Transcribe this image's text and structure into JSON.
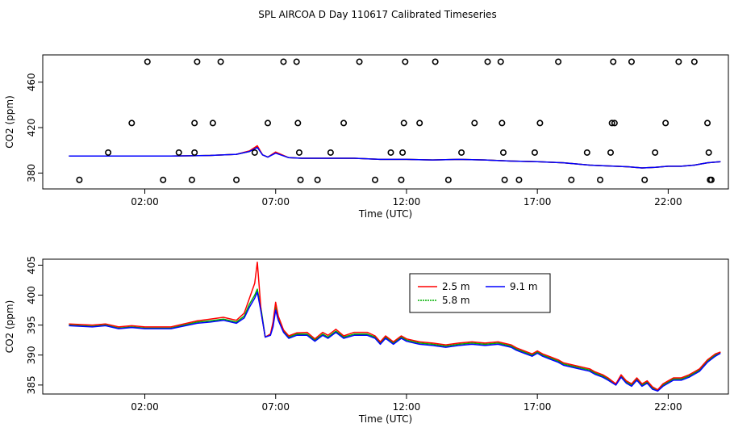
{
  "figure": {
    "title": "SPL AIRCOA D  Day 110617  Calibrated Timeseries"
  },
  "colors": {
    "red": "#ff0000",
    "green": "#00b000",
    "blue": "#0000ff",
    "black": "#000000"
  },
  "chart_data": [
    {
      "type": "line",
      "xlabel": "Time (UTC)",
      "ylabel": "CO2 (ppm)",
      "xlim": [
        -1.9,
        24.3
      ],
      "ylim": [
        366,
        484
      ],
      "x_ticks": [
        {
          "value": 2,
          "label": "02:00"
        },
        {
          "value": 7,
          "label": "07:00"
        },
        {
          "value": 12,
          "label": "12:00"
        },
        {
          "value": 17,
          "label": "17:00"
        },
        {
          "value": 22,
          "label": "22:00"
        }
      ],
      "y_ticks": [
        {
          "value": 380,
          "label": "380"
        },
        {
          "value": 420,
          "label": "420"
        },
        {
          "value": 460,
          "label": "460"
        }
      ],
      "series": [
        {
          "color_key": "green",
          "x": [
            -0.9,
            1.5,
            3.0,
            4.5,
            5.5,
            6.0,
            6.3,
            6.5,
            6.7,
            7.0,
            7.5,
            8.0,
            9.0,
            10.0,
            11.0,
            12.0,
            13.0,
            14.0,
            15.0,
            16.0,
            17.0,
            18.0,
            19.0,
            19.5,
            20.0,
            20.5,
            21.0,
            21.5,
            22.0,
            22.5,
            23.0,
            23.5,
            24.0
          ],
          "y": [
            395,
            395,
            395,
            395.5,
            396.5,
            399,
            403,
            396,
            394,
            398,
            393.5,
            393,
            393,
            393,
            392,
            392,
            391.5,
            392,
            391.5,
            390.5,
            390,
            389,
            387,
            386.5,
            386,
            385.5,
            384.5,
            385,
            386,
            386,
            387,
            389,
            390
          ]
        },
        {
          "color_key": "red",
          "x": [
            -0.9,
            1.5,
            3.0,
            4.5,
            5.5,
            6.0,
            6.3,
            6.5,
            6.7,
            7.0,
            7.5,
            8.0,
            9.0,
            10.0,
            11.0,
            12.0,
            13.0,
            14.0,
            15.0,
            16.0,
            17.0,
            18.0,
            19.0,
            19.5,
            20.0,
            20.5,
            21.0,
            21.5,
            22.0,
            22.5,
            23.0,
            23.5,
            24.0
          ],
          "y": [
            395,
            395,
            395,
            395.5,
            396.5,
            399.5,
            404,
            396,
            394,
            398.5,
            393.5,
            393,
            393,
            393,
            392,
            392,
            391.5,
            392,
            391.5,
            390.5,
            390,
            389,
            387,
            386.5,
            386,
            385.5,
            384.5,
            385,
            386,
            386,
            387,
            389,
            390
          ]
        },
        {
          "color_key": "blue",
          "x": [
            -0.9,
            1.5,
            3.0,
            4.5,
            5.5,
            6.0,
            6.3,
            6.5,
            6.7,
            7.0,
            7.5,
            8.0,
            9.0,
            10.0,
            11.0,
            12.0,
            13.0,
            14.0,
            15.0,
            16.0,
            17.0,
            18.0,
            19.0,
            19.5,
            20.0,
            20.5,
            21.0,
            21.5,
            22.0,
            22.5,
            23.0,
            23.5,
            24.0
          ],
          "y": [
            395,
            395,
            395,
            395.5,
            396.5,
            399,
            402.5,
            396,
            394,
            397.5,
            393.5,
            393,
            393,
            393,
            392,
            392,
            391.5,
            392,
            391.5,
            390.5,
            390,
            389,
            387,
            386.5,
            386,
            385.5,
            384.5,
            385,
            386,
            386,
            387,
            389,
            390
          ]
        }
      ],
      "points": {
        "type": "scatter",
        "color_key": "black",
        "x": [
          -0.5,
          0.6,
          1.5,
          2.1,
          2.7,
          3.3,
          3.8,
          3.9,
          3.9,
          4.0,
          4.6,
          4.9,
          5.5,
          6.2,
          6.7,
          7.3,
          7.8,
          7.85,
          7.9,
          7.95,
          8.6,
          9.1,
          9.6,
          10.2,
          10.8,
          11.4,
          11.8,
          11.85,
          11.9,
          11.95,
          12.5,
          13.1,
          13.6,
          14.1,
          14.6,
          15.1,
          15.6,
          15.65,
          15.7,
          15.75,
          16.3,
          16.9,
          17.1,
          17.8,
          18.3,
          18.9,
          19.4,
          19.8,
          19.85,
          19.9,
          19.95,
          20.6,
          21.1,
          21.5,
          21.9,
          22.4,
          23.0,
          23.5,
          23.55,
          23.6,
          23.65
        ],
        "y": [
          374,
          398,
          424,
          478,
          374,
          398,
          374,
          398,
          424,
          478,
          424,
          478,
          374,
          398,
          424,
          478,
          478,
          424,
          398,
          374,
          374,
          398,
          424,
          478,
          374,
          398,
          374,
          398,
          424,
          478,
          424,
          478,
          374,
          398,
          424,
          478,
          478,
          424,
          398,
          374,
          374,
          398,
          424,
          478,
          374,
          398,
          374,
          398,
          424,
          478,
          424,
          478,
          374,
          398,
          424,
          478,
          478,
          424,
          398,
          374,
          374
        ]
      }
    },
    {
      "type": "line",
      "xlabel": "Time (UTC)",
      "ylabel": "CO2 (ppm)",
      "xlim": [
        -1.9,
        24.3
      ],
      "ylim": [
        383.5,
        406
      ],
      "x_ticks": [
        {
          "value": 2,
          "label": "02:00"
        },
        {
          "value": 7,
          "label": "07:00"
        },
        {
          "value": 12,
          "label": "12:00"
        },
        {
          "value": 17,
          "label": "17:00"
        },
        {
          "value": 22,
          "label": "22:00"
        }
      ],
      "y_ticks": [
        {
          "value": 385,
          "label": "385"
        },
        {
          "value": 390,
          "label": "390"
        },
        {
          "value": 395,
          "label": "395"
        },
        {
          "value": 400,
          "label": "400"
        },
        {
          "value": 405,
          "label": "405"
        }
      ],
      "legend": {
        "position": "top-center",
        "entries": [
          {
            "name": "2.5 m",
            "color_key": "red"
          },
          {
            "name": "9.1 m",
            "color_key": "blue"
          },
          {
            "name": "5.8 m",
            "color_key": "green"
          }
        ]
      },
      "series": [
        {
          "name": "5.8 m",
          "color_key": "green",
          "x": [
            -0.9,
            0.0,
            0.5,
            1.0,
            1.5,
            2.0,
            3.0,
            4.0,
            4.5,
            5.0,
            5.5,
            5.8,
            6.0,
            6.2,
            6.3,
            6.45,
            6.6,
            6.8,
            6.9,
            7.0,
            7.1,
            7.3,
            7.5,
            7.8,
            8.2,
            8.5,
            8.8,
            9.0,
            9.3,
            9.6,
            10.0,
            10.5,
            10.8,
            11.0,
            11.2,
            11.5,
            11.8,
            12.0,
            12.5,
            13.0,
            13.5,
            14.0,
            14.5,
            15.0,
            15.5,
            16.0,
            16.2,
            16.5,
            16.8,
            17.0,
            17.2,
            17.5,
            17.8,
            18.0,
            18.5,
            19.0,
            19.2,
            19.5,
            19.7,
            20.0,
            20.2,
            20.4,
            20.6,
            20.8,
            21.0,
            21.2,
            21.4,
            21.6,
            21.8,
            22.0,
            22.2,
            22.5,
            22.8,
            23.0,
            23.2,
            23.5,
            23.8,
            24.0
          ],
          "y": [
            395,
            394.8,
            395,
            394.5,
            394.7,
            394.5,
            394.5,
            395.5,
            395.7,
            396,
            395.5,
            396.5,
            398.5,
            400,
            401,
            397.5,
            393,
            393.5,
            395,
            398,
            396,
            394,
            393,
            393.5,
            393.5,
            392.5,
            393.5,
            393,
            394,
            393,
            393.5,
            393.5,
            393,
            392,
            393,
            392,
            393,
            392.5,
            392,
            391.8,
            391.5,
            391.8,
            392,
            391.8,
            392,
            391.5,
            391,
            390.5,
            390,
            390.5,
            390,
            389.5,
            389,
            388.5,
            388,
            387.5,
            387,
            386.5,
            386,
            385,
            386.5,
            385.5,
            385,
            386,
            385,
            385.5,
            384.5,
            384,
            385,
            385.5,
            386,
            386,
            386.5,
            387,
            387.5,
            389,
            390,
            390.5
          ]
        },
        {
          "name": "2.5 m",
          "color_key": "red",
          "x": [
            -0.9,
            0.0,
            0.5,
            1.0,
            1.5,
            2.0,
            3.0,
            4.0,
            4.5,
            5.0,
            5.5,
            5.8,
            6.0,
            6.2,
            6.3,
            6.45,
            6.6,
            6.8,
            6.9,
            7.0,
            7.1,
            7.3,
            7.5,
            7.8,
            8.2,
            8.5,
            8.8,
            9.0,
            9.3,
            9.6,
            10.0,
            10.5,
            10.8,
            11.0,
            11.2,
            11.5,
            11.8,
            12.0,
            12.5,
            13.0,
            13.5,
            14.0,
            14.5,
            15.0,
            15.5,
            16.0,
            16.2,
            16.5,
            16.8,
            17.0,
            17.2,
            17.5,
            17.8,
            18.0,
            18.5,
            19.0,
            19.2,
            19.5,
            19.7,
            20.0,
            20.2,
            20.4,
            20.6,
            20.8,
            21.0,
            21.2,
            21.4,
            21.6,
            21.8,
            22.0,
            22.2,
            22.5,
            22.8,
            23.0,
            23.2,
            23.5,
            23.8,
            24.0
          ],
          "y": [
            395.2,
            395,
            395.2,
            394.7,
            394.9,
            394.7,
            394.7,
            395.7,
            396,
            396.3,
            395.8,
            397,
            399.5,
            402,
            405.5,
            397,
            393,
            393.5,
            395.5,
            398.8,
            396.5,
            394.2,
            393.2,
            393.7,
            393.8,
            392.7,
            393.8,
            393.3,
            394.3,
            393.2,
            393.8,
            393.8,
            393.2,
            392.2,
            393.2,
            392.2,
            393.2,
            392.7,
            392.2,
            392,
            391.7,
            392,
            392.2,
            392,
            392.2,
            391.7,
            391.2,
            390.7,
            390.2,
            390.7,
            390.2,
            389.7,
            389.2,
            388.7,
            388.2,
            387.7,
            387.2,
            386.7,
            386.2,
            385.2,
            386.7,
            385.7,
            385.2,
            386.2,
            385.2,
            385.7,
            384.7,
            384.2,
            385.2,
            385.7,
            386.2,
            386.2,
            386.7,
            387.2,
            387.7,
            389.2,
            390.2,
            390.5
          ]
        },
        {
          "name": "9.1 m",
          "color_key": "blue",
          "x": [
            -0.9,
            0.0,
            0.5,
            1.0,
            1.5,
            2.0,
            3.0,
            4.0,
            4.5,
            5.0,
            5.5,
            5.8,
            6.0,
            6.2,
            6.3,
            6.45,
            6.6,
            6.8,
            6.9,
            7.0,
            7.1,
            7.3,
            7.5,
            7.8,
            8.2,
            8.5,
            8.8,
            9.0,
            9.3,
            9.6,
            10.0,
            10.5,
            10.8,
            11.0,
            11.2,
            11.5,
            11.8,
            12.0,
            12.5,
            13.0,
            13.5,
            14.0,
            14.5,
            15.0,
            15.5,
            16.0,
            16.2,
            16.5,
            16.8,
            17.0,
            17.2,
            17.5,
            17.8,
            18.0,
            18.5,
            19.0,
            19.2,
            19.5,
            19.7,
            20.0,
            20.2,
            20.4,
            20.6,
            20.8,
            21.0,
            21.2,
            21.4,
            21.6,
            21.8,
            22.0,
            22.2,
            22.5,
            22.8,
            23.0,
            23.2,
            23.5,
            23.8,
            24.0
          ],
          "y": [
            394.9,
            394.7,
            394.9,
            394.4,
            394.6,
            394.4,
            394.4,
            395.3,
            395.5,
            395.8,
            395.3,
            396.2,
            398,
            399.5,
            400.5,
            397,
            393,
            393.3,
            394.7,
            397.5,
            395.8,
            393.8,
            392.8,
            393.3,
            393.3,
            392.3,
            393.3,
            392.8,
            393.8,
            392.8,
            393.3,
            393.3,
            392.8,
            391.8,
            392.8,
            391.8,
            392.8,
            392.3,
            391.8,
            391.6,
            391.3,
            391.6,
            391.8,
            391.6,
            391.8,
            391.3,
            390.8,
            390.3,
            389.8,
            390.3,
            389.8,
            389.3,
            388.8,
            388.3,
            387.8,
            387.3,
            386.8,
            386.3,
            385.8,
            385,
            386.3,
            385.3,
            384.8,
            385.8,
            384.8,
            385.3,
            384.3,
            384,
            384.8,
            385.3,
            385.8,
            385.8,
            386.3,
            386.8,
            387.3,
            388.8,
            389.8,
            390.3
          ]
        }
      ]
    }
  ]
}
